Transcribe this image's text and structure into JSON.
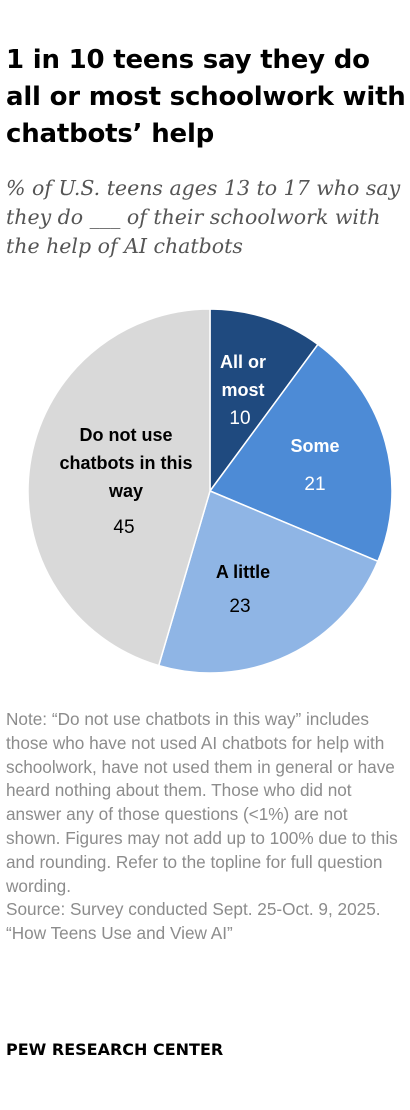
{
  "title": "1 in 10 teens say they do all or most schoolwork with chatbots’ help",
  "subtitle": "% of U.S. teens ages 13 to 17 who say they do ___ of their schoolwork with the help of AI chatbots",
  "chart_data": {
    "type": "pie",
    "title": "1 in 10 teens say they do all or most schoolwork with chatbots’ help",
    "subtitle": "% of U.S. teens ages 13 to 17 who say they do ___ of their schoolwork with the help of AI chatbots",
    "slices": [
      {
        "label": "All or most",
        "value": 10,
        "color": "#1f4a7f"
      },
      {
        "label": "Some",
        "value": 21,
        "color": "#4d8bd6"
      },
      {
        "label": "A little",
        "value": 23,
        "color": "#8fb5e5"
      },
      {
        "label": "Do not use chatbots in this way",
        "value": 45,
        "color": "#d9d9d9"
      }
    ]
  },
  "note": "Note: “Do not use chatbots in this way” includes those who have not used AI chatbots for help with schoolwork, have not used them in general or have heard nothing about them. Those who did not answer any of those questions (<1%) are not shown. Figures may not add up to 100% due to this and rounding. Refer to the topline for full question wording.",
  "source": "Source: Survey conducted Sept. 25-Oct. 9, 2025.",
  "report": "“How Teens Use and View AI”",
  "footer": "PEW RESEARCH CENTER"
}
